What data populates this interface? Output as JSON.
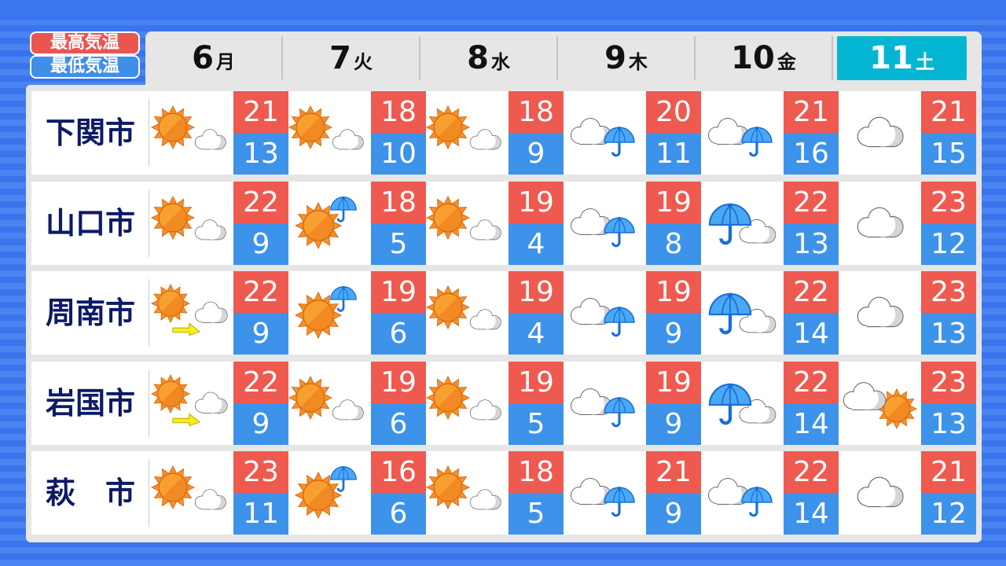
{
  "legend": {
    "high": "最高気温",
    "low": "最低気温"
  },
  "colors": {
    "high": "#ef5a50",
    "low": "#3d92ea",
    "highlight": "#05b6d3",
    "city_text": "#0d1a66"
  },
  "days": [
    {
      "num": "6",
      "wd": "月"
    },
    {
      "num": "7",
      "wd": "火"
    },
    {
      "num": "8",
      "wd": "水"
    },
    {
      "num": "9",
      "wd": "木"
    },
    {
      "num": "10",
      "wd": "金"
    },
    {
      "num": "11",
      "wd": "土",
      "highlight": true
    }
  ],
  "rows": [
    {
      "city": "下関市",
      "cells": [
        {
          "icon": "sun-cloud",
          "hi": "21",
          "lo": "13"
        },
        {
          "icon": "sun-cloud",
          "hi": "18",
          "lo": "10"
        },
        {
          "icon": "sun-cloud",
          "hi": "18",
          "lo": "9"
        },
        {
          "icon": "cloud-rain",
          "hi": "20",
          "lo": "11"
        },
        {
          "icon": "cloud-rain",
          "hi": "21",
          "lo": "16"
        },
        {
          "icon": "cloud",
          "hi": "21",
          "lo": "15"
        }
      ]
    },
    {
      "city": "山口市",
      "cells": [
        {
          "icon": "sun-cloud",
          "hi": "22",
          "lo": "9"
        },
        {
          "icon": "sun-rain",
          "hi": "18",
          "lo": "5"
        },
        {
          "icon": "sun-cloud",
          "hi": "19",
          "lo": "4"
        },
        {
          "icon": "cloud-rain",
          "hi": "19",
          "lo": "8"
        },
        {
          "icon": "rain-cloud",
          "hi": "22",
          "lo": "13"
        },
        {
          "icon": "cloud",
          "hi": "23",
          "lo": "12"
        }
      ]
    },
    {
      "city": "周南市",
      "cells": [
        {
          "icon": "sun-then-cloud",
          "hi": "22",
          "lo": "9"
        },
        {
          "icon": "sun-rain",
          "hi": "19",
          "lo": "6"
        },
        {
          "icon": "sun-cloud",
          "hi": "19",
          "lo": "4"
        },
        {
          "icon": "cloud-rain",
          "hi": "19",
          "lo": "9"
        },
        {
          "icon": "rain-cloud",
          "hi": "22",
          "lo": "14"
        },
        {
          "icon": "cloud",
          "hi": "23",
          "lo": "13"
        }
      ]
    },
    {
      "city": "岩国市",
      "cells": [
        {
          "icon": "sun-then-cloud",
          "hi": "22",
          "lo": "9"
        },
        {
          "icon": "sun-cloud",
          "hi": "19",
          "lo": "6"
        },
        {
          "icon": "sun-cloud",
          "hi": "19",
          "lo": "5"
        },
        {
          "icon": "cloud-rain",
          "hi": "19",
          "lo": "9"
        },
        {
          "icon": "rain-cloud",
          "hi": "22",
          "lo": "14"
        },
        {
          "icon": "cloud-sun",
          "hi": "23",
          "lo": "13"
        }
      ]
    },
    {
      "city": "萩　市",
      "cells": [
        {
          "icon": "sun-cloud",
          "hi": "23",
          "lo": "11"
        },
        {
          "icon": "sun-rain",
          "hi": "16",
          "lo": "6"
        },
        {
          "icon": "sun-cloud",
          "hi": "18",
          "lo": "5"
        },
        {
          "icon": "cloud-rain",
          "hi": "21",
          "lo": "9"
        },
        {
          "icon": "cloud-rain",
          "hi": "22",
          "lo": "14"
        },
        {
          "icon": "cloud",
          "hi": "21",
          "lo": "12"
        }
      ]
    }
  ]
}
